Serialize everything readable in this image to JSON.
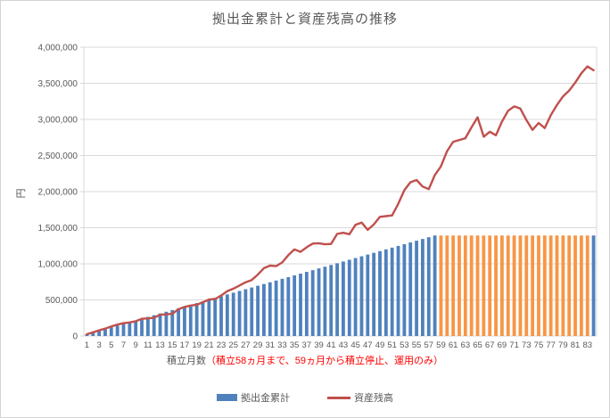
{
  "window": {
    "background": "#ffffff",
    "border_color": "#d4d4d4"
  },
  "chart": {
    "title": "拠出金累計と資産残高の推移",
    "y_axis": {
      "title": "円",
      "tick_labels": [
        "0",
        "500,000",
        "1,000,000",
        "1,500,000",
        "2,000,000",
        "2,500,000",
        "3,000,000",
        "3,500,000",
        "4,000,000"
      ],
      "min": 0,
      "max": 4000000,
      "grid_color": "#d9d9d9",
      "label_color": "#595959"
    },
    "x_axis": {
      "title_main": "積立月数",
      "title_annotation": "（積立58ヵ月まで、59ヵ月から積立停止、運用のみ）",
      "annotation_color": "#ff0000",
      "tick_labels": [
        "1",
        "3",
        "5",
        "7",
        "9",
        "11",
        "13",
        "15",
        "17",
        "19",
        "21",
        "23",
        "25",
        "27",
        "29",
        "31",
        "33",
        "35",
        "37",
        "39",
        "41",
        "43",
        "45",
        "47",
        "49",
        "51",
        "53",
        "55",
        "57",
        "59",
        "61",
        "63",
        "65",
        "67",
        "69",
        "71",
        "73",
        "75",
        "77",
        "79",
        "81",
        "83"
      ],
      "label_color": "#595959"
    },
    "legend": [
      {
        "label": "拠出金累計",
        "color": "#4F81BD",
        "type": "bar"
      },
      {
        "label": "資産残高",
        "color": "#C0504D",
        "type": "line"
      }
    ]
  },
  "chart_data": {
    "type": "bar+line",
    "x_label": "積立月数",
    "y_label": "円",
    "x_range": [
      1,
      84
    ],
    "ylim": [
      0,
      4000000
    ],
    "grid": true,
    "legend_position": "bottom",
    "series": [
      {
        "name": "拠出金累計",
        "type": "bar",
        "monthly_contribution": 24000,
        "values": [
          24000,
          48000,
          72000,
          96000,
          120000,
          144000,
          168000,
          192000,
          216000,
          240000,
          264000,
          288000,
          312000,
          336000,
          360000,
          384000,
          408000,
          432000,
          456000,
          480000,
          504000,
          528000,
          552000,
          576000,
          600000,
          624000,
          648000,
          672000,
          696000,
          720000,
          744000,
          768000,
          792000,
          816000,
          840000,
          864000,
          888000,
          912000,
          936000,
          960000,
          984000,
          1008000,
          1032000,
          1056000,
          1080000,
          1104000,
          1128000,
          1152000,
          1176000,
          1200000,
          1224000,
          1248000,
          1272000,
          1296000,
          1320000,
          1344000,
          1368000,
          1392000,
          1392000,
          1392000,
          1392000,
          1392000,
          1392000,
          1392000,
          1392000,
          1392000,
          1392000,
          1392000,
          1392000,
          1392000,
          1392000,
          1392000,
          1392000,
          1392000,
          1392000,
          1392000,
          1392000,
          1392000,
          1392000,
          1392000,
          1392000,
          1392000,
          1392000,
          1392000
        ],
        "color_rules": [
          {
            "from_month": 1,
            "to_month": 58,
            "color": "#4F81BD"
          },
          {
            "from_month": 59,
            "to_month": 83,
            "color": "#F79646"
          },
          {
            "from_month": 84,
            "to_month": 84,
            "color": "#4F81BD"
          }
        ]
      },
      {
        "name": "資産残高",
        "type": "line",
        "color": "#C0504D",
        "values": [
          25000,
          50000,
          78000,
          103000,
          132000,
          158000,
          178000,
          188000,
          205000,
          238000,
          245000,
          252000,
          295000,
          300000,
          308000,
          370000,
          403000,
          422000,
          432000,
          468000,
          505000,
          512000,
          560000,
          622000,
          655000,
          700000,
          745000,
          775000,
          850000,
          940000,
          975000,
          968000,
          1020000,
          1120000,
          1200000,
          1165000,
          1230000,
          1280000,
          1285000,
          1270000,
          1275000,
          1415000,
          1430000,
          1410000,
          1540000,
          1572000,
          1470000,
          1545000,
          1650000,
          1660000,
          1670000,
          1830000,
          2020000,
          2130000,
          2160000,
          2070000,
          2035000,
          2230000,
          2350000,
          2560000,
          2690000,
          2715000,
          2740000,
          2890000,
          3030000,
          2760000,
          2830000,
          2780000,
          2970000,
          3120000,
          3180000,
          3150000,
          2990000,
          2855000,
          2950000,
          2880000,
          3060000,
          3200000,
          3320000,
          3400000,
          3510000,
          3640000,
          3735000,
          3680000
        ]
      }
    ]
  }
}
